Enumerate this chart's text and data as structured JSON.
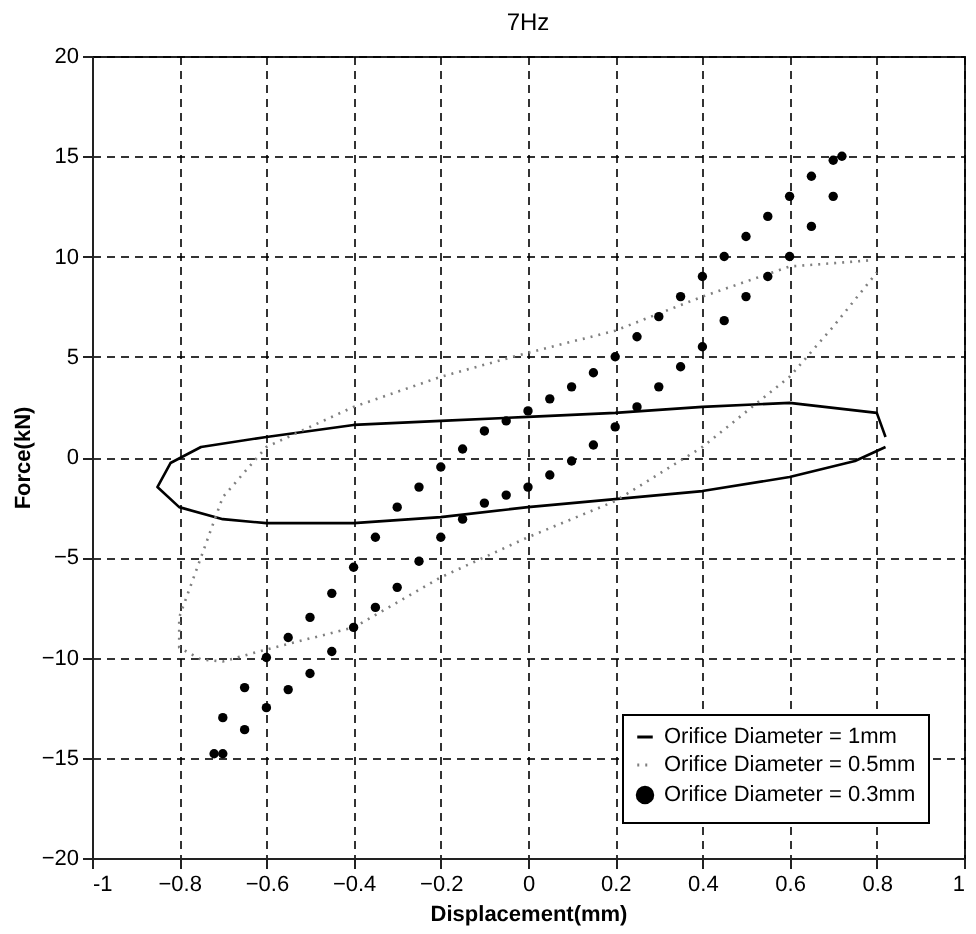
{
  "chart_data": {
    "type": "line",
    "title": "7Hz",
    "xlabel": "Displacement(mm)",
    "ylabel": "Force(kN)",
    "xlim": [
      -1,
      1
    ],
    "xticks": [
      {
        "value": -1,
        "label": "-1"
      },
      -0.8,
      -0.6,
      -0.4,
      -0.2,
      {
        "value": 0,
        "label": "0"
      },
      0.2,
      0.4,
      0.6,
      0.8,
      {
        "value": 1,
        "label": "1"
      }
    ],
    "ylim": [
      -20,
      20
    ],
    "yticks": [
      -20,
      -15,
      -10,
      -5,
      0,
      5,
      10,
      15,
      20
    ],
    "grid": true,
    "legend": "bottom right",
    "series": [
      {
        "name": "Orifice Diameter = 1mm",
        "line_style": "solid",
        "color": "#000000",
        "x": [
          0.82,
          0.8,
          0.6,
          0.4,
          0.2,
          0,
          -0.2,
          -0.4,
          -0.6,
          -0.75,
          -0.82,
          -0.85,
          -0.8,
          -0.7,
          -0.6,
          -0.4,
          -0.2,
          0,
          0.2,
          0.4,
          0.6,
          0.75,
          0.82
        ],
        "values": [
          1.0,
          2.2,
          2.7,
          2.5,
          2.2,
          2.0,
          1.8,
          1.6,
          1.0,
          0.5,
          -0.3,
          -1.5,
          -2.5,
          -3.1,
          -3.3,
          -3.3,
          -3.0,
          -2.5,
          -2.1,
          -1.7,
          -1.0,
          -0.2,
          0.5
        ]
      },
      {
        "name": "Orifice Diameter = 0.5mm",
        "line_style": "dotted",
        "color": "#808080",
        "x": [
          0.78,
          0.6,
          0.4,
          0.2,
          0,
          -0.2,
          -0.4,
          -0.6,
          -0.7,
          -0.75,
          -0.8,
          -0.8,
          -0.75,
          -0.7,
          -0.6,
          -0.4,
          -0.2,
          0,
          0.2,
          0.4,
          0.6,
          0.7,
          0.8
        ],
        "values": [
          9.8,
          9.5,
          8.0,
          6.3,
          5.2,
          4.0,
          2.5,
          0.5,
          -2.0,
          -5.0,
          -8.0,
          -9.5,
          -10.1,
          -10.2,
          -9.6,
          -8.5,
          -6.0,
          -4.0,
          -2.2,
          0.5,
          4.0,
          6.5,
          9.2
        ]
      },
      {
        "name": "Orifice Diameter = 0.3mm",
        "type": "scatter",
        "marker": "circle",
        "color": "#000000",
        "x": [
          -0.72,
          -0.7,
          -0.65,
          -0.6,
          -0.55,
          -0.5,
          -0.45,
          -0.4,
          -0.35,
          -0.3,
          -0.25,
          -0.2,
          -0.15,
          -0.1,
          -0.05,
          0,
          0.05,
          0.1,
          0.15,
          0.2,
          0.25,
          0.3,
          0.35,
          0.4,
          0.45,
          0.5,
          0.55,
          0.6,
          0.65,
          0.7,
          0.72,
          0.7,
          0.65,
          0.6,
          0.55,
          0.5,
          0.45,
          0.4,
          0.35,
          0.3,
          0.25,
          0.2,
          0.15,
          0.1,
          0.05,
          0,
          -0.05,
          -0.1,
          -0.15,
          -0.2,
          -0.25,
          -0.3,
          -0.35,
          -0.4,
          -0.45,
          -0.5,
          -0.55,
          -0.6,
          -0.65,
          -0.7
        ],
        "values": [
          -14.8,
          -13,
          -11.5,
          -10,
          -9,
          -8,
          -6.8,
          -5.5,
          -4,
          -2.5,
          -1.5,
          -0.5,
          0.4,
          1.3,
          1.8,
          2.3,
          2.9,
          3.5,
          4.2,
          5,
          6,
          7,
          8,
          9,
          10,
          11,
          12,
          13,
          14,
          14.8,
          15,
          13,
          11.5,
          10,
          9,
          8,
          6.8,
          5.5,
          4.5,
          3.5,
          2.5,
          1.5,
          0.6,
          -0.2,
          -0.9,
          -1.5,
          -1.9,
          -2.3,
          -3.1,
          -4,
          -5.2,
          -6.5,
          -7.5,
          -8.5,
          -9.7,
          -10.8,
          -11.6,
          -12.5,
          -13.6,
          -14.8
        ]
      }
    ]
  }
}
